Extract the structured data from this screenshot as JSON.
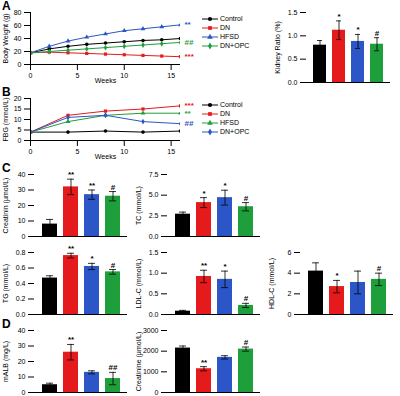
{
  "chart_data": [
    {
      "type": "line",
      "title": "A",
      "x_label": "Weeks",
      "y_label": "Body Weight (g)",
      "x": [
        0,
        2,
        4,
        6,
        8,
        10,
        12,
        14,
        16
      ],
      "xlim": [
        0,
        16
      ],
      "xticks": [
        0,
        5,
        10,
        15
      ],
      "ylim": [
        0,
        80
      ],
      "yticks": [
        0,
        20,
        40,
        60,
        80
      ],
      "legend": "right",
      "series": [
        {
          "name": "Control",
          "color": "#000000",
          "marker": "circle",
          "values": [
            18,
            24,
            28,
            31,
            33,
            35,
            37,
            38,
            40
          ]
        },
        {
          "name": "DN",
          "color": "#e41a1c",
          "marker": "square",
          "values": [
            18,
            19,
            18,
            17,
            16,
            15,
            14,
            13,
            12
          ]
        },
        {
          "name": "HFSD",
          "color": "#2c56c7",
          "marker": "triangle",
          "values": [
            18,
            28,
            36,
            42,
            47,
            52,
            55,
            58,
            61
          ]
        },
        {
          "name": "DN+OPC",
          "color": "#1f9e3c",
          "marker": "diamond",
          "values": [
            18,
            20,
            22,
            24,
            26,
            28,
            30,
            32,
            34
          ]
        }
      ],
      "annotations": [
        {
          "series": "HFSD",
          "text": "**"
        },
        {
          "series": "DN+OPC",
          "text": "##"
        },
        {
          "series": "DN",
          "text": "***"
        }
      ]
    },
    {
      "type": "bar",
      "y_label": "Kidney Ratio (%)",
      "categories": [
        "Control",
        "DN",
        "HFSD",
        "DN+OPC"
      ],
      "colors": [
        "#000000",
        "#e41a1c",
        "#2c56c7",
        "#1f9e3c"
      ],
      "values": [
        0.8,
        1.12,
        0.88,
        0.82
      ],
      "errors": [
        0.1,
        0.2,
        0.15,
        0.14
      ],
      "ylim": [
        0,
        1.5
      ],
      "yticks": [
        {
          "value": 0,
          "label": "0.0"
        },
        0.5,
        {
          "value": 1,
          "label": "1.0"
        },
        1.5
      ],
      "tick_labels": "y",
      "annotations": [
        {
          "category": "DN",
          "text": "*"
        },
        {
          "category": "HFSD",
          "text": "*"
        },
        {
          "category": "DN+OPC",
          "text": "#"
        }
      ]
    },
    {
      "type": "line",
      "title": "B",
      "x_label": "Weeks",
      "y_label": "FBG (mmol/L)",
      "x": [
        0,
        4,
        8,
        12,
        16
      ],
      "xlim": [
        0,
        16
      ],
      "xticks": [
        0,
        5,
        10,
        15
      ],
      "ylim": [
        0,
        20
      ],
      "yticks": [
        0,
        5,
        10,
        15,
        20
      ],
      "legend": "right",
      "series": [
        {
          "name": "Control",
          "color": "#000000",
          "marker": "circle",
          "values": [
            4,
            4,
            4.5,
            4,
            4.5
          ]
        },
        {
          "name": "DN",
          "color": "#e41a1c",
          "marker": "square",
          "values": [
            4,
            12,
            14,
            15,
            16.5
          ]
        },
        {
          "name": "HFSD",
          "color": "#1f9e3c",
          "marker": "triangle",
          "values": [
            4,
            9,
            12,
            13,
            13
          ]
        },
        {
          "name": "DN+OPC",
          "color": "#2c56c7",
          "marker": "diamond",
          "values": [
            4,
            11,
            12,
            9,
            8
          ]
        }
      ],
      "annotations": [
        {
          "series": "DN",
          "text": "***"
        },
        {
          "series": "HFSD",
          "text": "**"
        },
        {
          "series": "DN+OPC",
          "text": "##"
        }
      ]
    },
    {
      "type": "bar",
      "title": "C",
      "y_label": "Creatinin (µmol/L)",
      "categories": [
        "Control",
        "DN",
        "HFSD",
        "DN+OPC"
      ],
      "colors": [
        "#000000",
        "#e41a1c",
        "#2c56c7",
        "#1f9e3c"
      ],
      "values": [
        8,
        32,
        27,
        26
      ],
      "errors": [
        3,
        5,
        3,
        3
      ],
      "ylim": [
        0,
        40
      ],
      "yticks": [
        0,
        10,
        20,
        30,
        40
      ],
      "tick_labels": "y",
      "annotations": [
        {
          "category": "DN",
          "text": "**"
        },
        {
          "category": "HFSD",
          "text": "**"
        },
        {
          "category": "DN+OPC",
          "text": "#"
        }
      ]
    },
    {
      "type": "bar",
      "y_label": "TC (mmol/L)",
      "categories": [
        "Control",
        "DN",
        "HFSD",
        "DN+OPC"
      ],
      "colors": [
        "#000000",
        "#e41a1c",
        "#2c56c7",
        "#1f9e3c"
      ],
      "values": [
        2.7,
        4.1,
        4.7,
        3.6
      ],
      "errors": [
        0.25,
        0.6,
        0.9,
        0.5
      ],
      "ylim": [
        0,
        7.5
      ],
      "yticks": [
        {
          "value": 0,
          "label": "0.0"
        },
        2.5,
        {
          "value": 5,
          "label": "5.0"
        },
        7.5
      ],
      "tick_labels": "y",
      "annotations": [
        {
          "category": "DN",
          "text": "*"
        },
        {
          "category": "HFSD",
          "text": "*"
        },
        {
          "category": "DN+OPC",
          "text": "#"
        }
      ]
    },
    {
      "type": "bar",
      "y_label": "TG (mmol/L)",
      "categories": [
        "Control",
        "DN",
        "HFSD",
        "DN+OPC"
      ],
      "colors": [
        "#000000",
        "#e41a1c",
        "#2c56c7",
        "#1f9e3c"
      ],
      "values": [
        0.47,
        0.76,
        0.62,
        0.55
      ],
      "errors": [
        0.03,
        0.03,
        0.04,
        0.03
      ],
      "ylim": [
        0,
        0.8
      ],
      "yticks": [
        {
          "value": 0,
          "label": "0.0"
        },
        0.2,
        0.4,
        0.6,
        0.8
      ],
      "tick_labels": "y",
      "annotations": [
        {
          "category": "DN",
          "text": "**"
        },
        {
          "category": "HFSD",
          "text": "*"
        },
        {
          "category": "DN+OPC",
          "text": "#"
        }
      ]
    },
    {
      "type": "bar",
      "y_label": "LDL-C (mmol/L)",
      "categories": [
        "Control",
        "DN",
        "HFSD",
        "DN+OPC"
      ],
      "colors": [
        "#000000",
        "#e41a1c",
        "#2c56c7",
        "#1f9e3c"
      ],
      "values": [
        0.08,
        0.92,
        0.85,
        0.22
      ],
      "errors": [
        0.02,
        0.15,
        0.2,
        0.05
      ],
      "ylim": [
        0,
        1.5
      ],
      "yticks": [
        {
          "value": 0,
          "label": "0.0"
        },
        0.5,
        {
          "value": 1,
          "label": "1.0"
        },
        1.5
      ],
      "tick_labels": "y",
      "annotations": [
        {
          "category": "DN",
          "text": "**"
        },
        {
          "category": "HFSD",
          "text": "*"
        },
        {
          "category": "DN+OPC",
          "text": "#"
        }
      ]
    },
    {
      "type": "bar",
      "y_label": "HDL-C (mmol/L)",
      "categories": [
        "Control",
        "DN",
        "HFSD",
        "DN+OPC"
      ],
      "colors": [
        "#000000",
        "#e41a1c",
        "#2c56c7",
        "#1f9e3c"
      ],
      "values": [
        4.2,
        2.7,
        3.1,
        3.4
      ],
      "errors": [
        0.8,
        0.6,
        1.1,
        0.6
      ],
      "ylim": [
        0,
        6
      ],
      "yticks": [
        0,
        2,
        4,
        6
      ],
      "tick_labels": "y",
      "annotations": [
        {
          "category": "DN",
          "text": "*"
        },
        {
          "category": "DN+OPC",
          "text": "#"
        }
      ]
    },
    {
      "type": "bar",
      "title": "D",
      "y_label": "mALB (mg/L)",
      "categories": [
        "Control",
        "DN",
        "HFSD",
        "DN+OPC"
      ],
      "colors": [
        "#000000",
        "#e41a1c",
        "#2c56c7",
        "#1f9e3c"
      ],
      "values": [
        5,
        26,
        13,
        9
      ],
      "errors": [
        1,
        5,
        1,
        4
      ],
      "ylim": [
        0,
        40
      ],
      "yticks": [
        0,
        10,
        20,
        30,
        40
      ],
      "tick_labels": "y",
      "annotations": [
        {
          "category": "DN",
          "text": "**"
        },
        {
          "category": "DN+OPC",
          "text": "##"
        }
      ]
    },
    {
      "type": "bar",
      "y_label": "Creatinine (µmol/L)",
      "categories": [
        "Control",
        "DN",
        "HFSD",
        "DN+OPC"
      ],
      "colors": [
        "#000000",
        "#e41a1c",
        "#2c56c7",
        "#1f9e3c"
      ],
      "values": [
        2150,
        1150,
        1700,
        2100
      ],
      "errors": [
        100,
        100,
        80,
        100
      ],
      "ylim": [
        0,
        3000
      ],
      "yticks": [
        0,
        1000,
        2000,
        3000
      ],
      "tick_labels": "y",
      "annotations": [
        {
          "category": "DN",
          "text": "**"
        },
        {
          "category": "DN+OPC",
          "text": "#"
        }
      ]
    }
  ]
}
